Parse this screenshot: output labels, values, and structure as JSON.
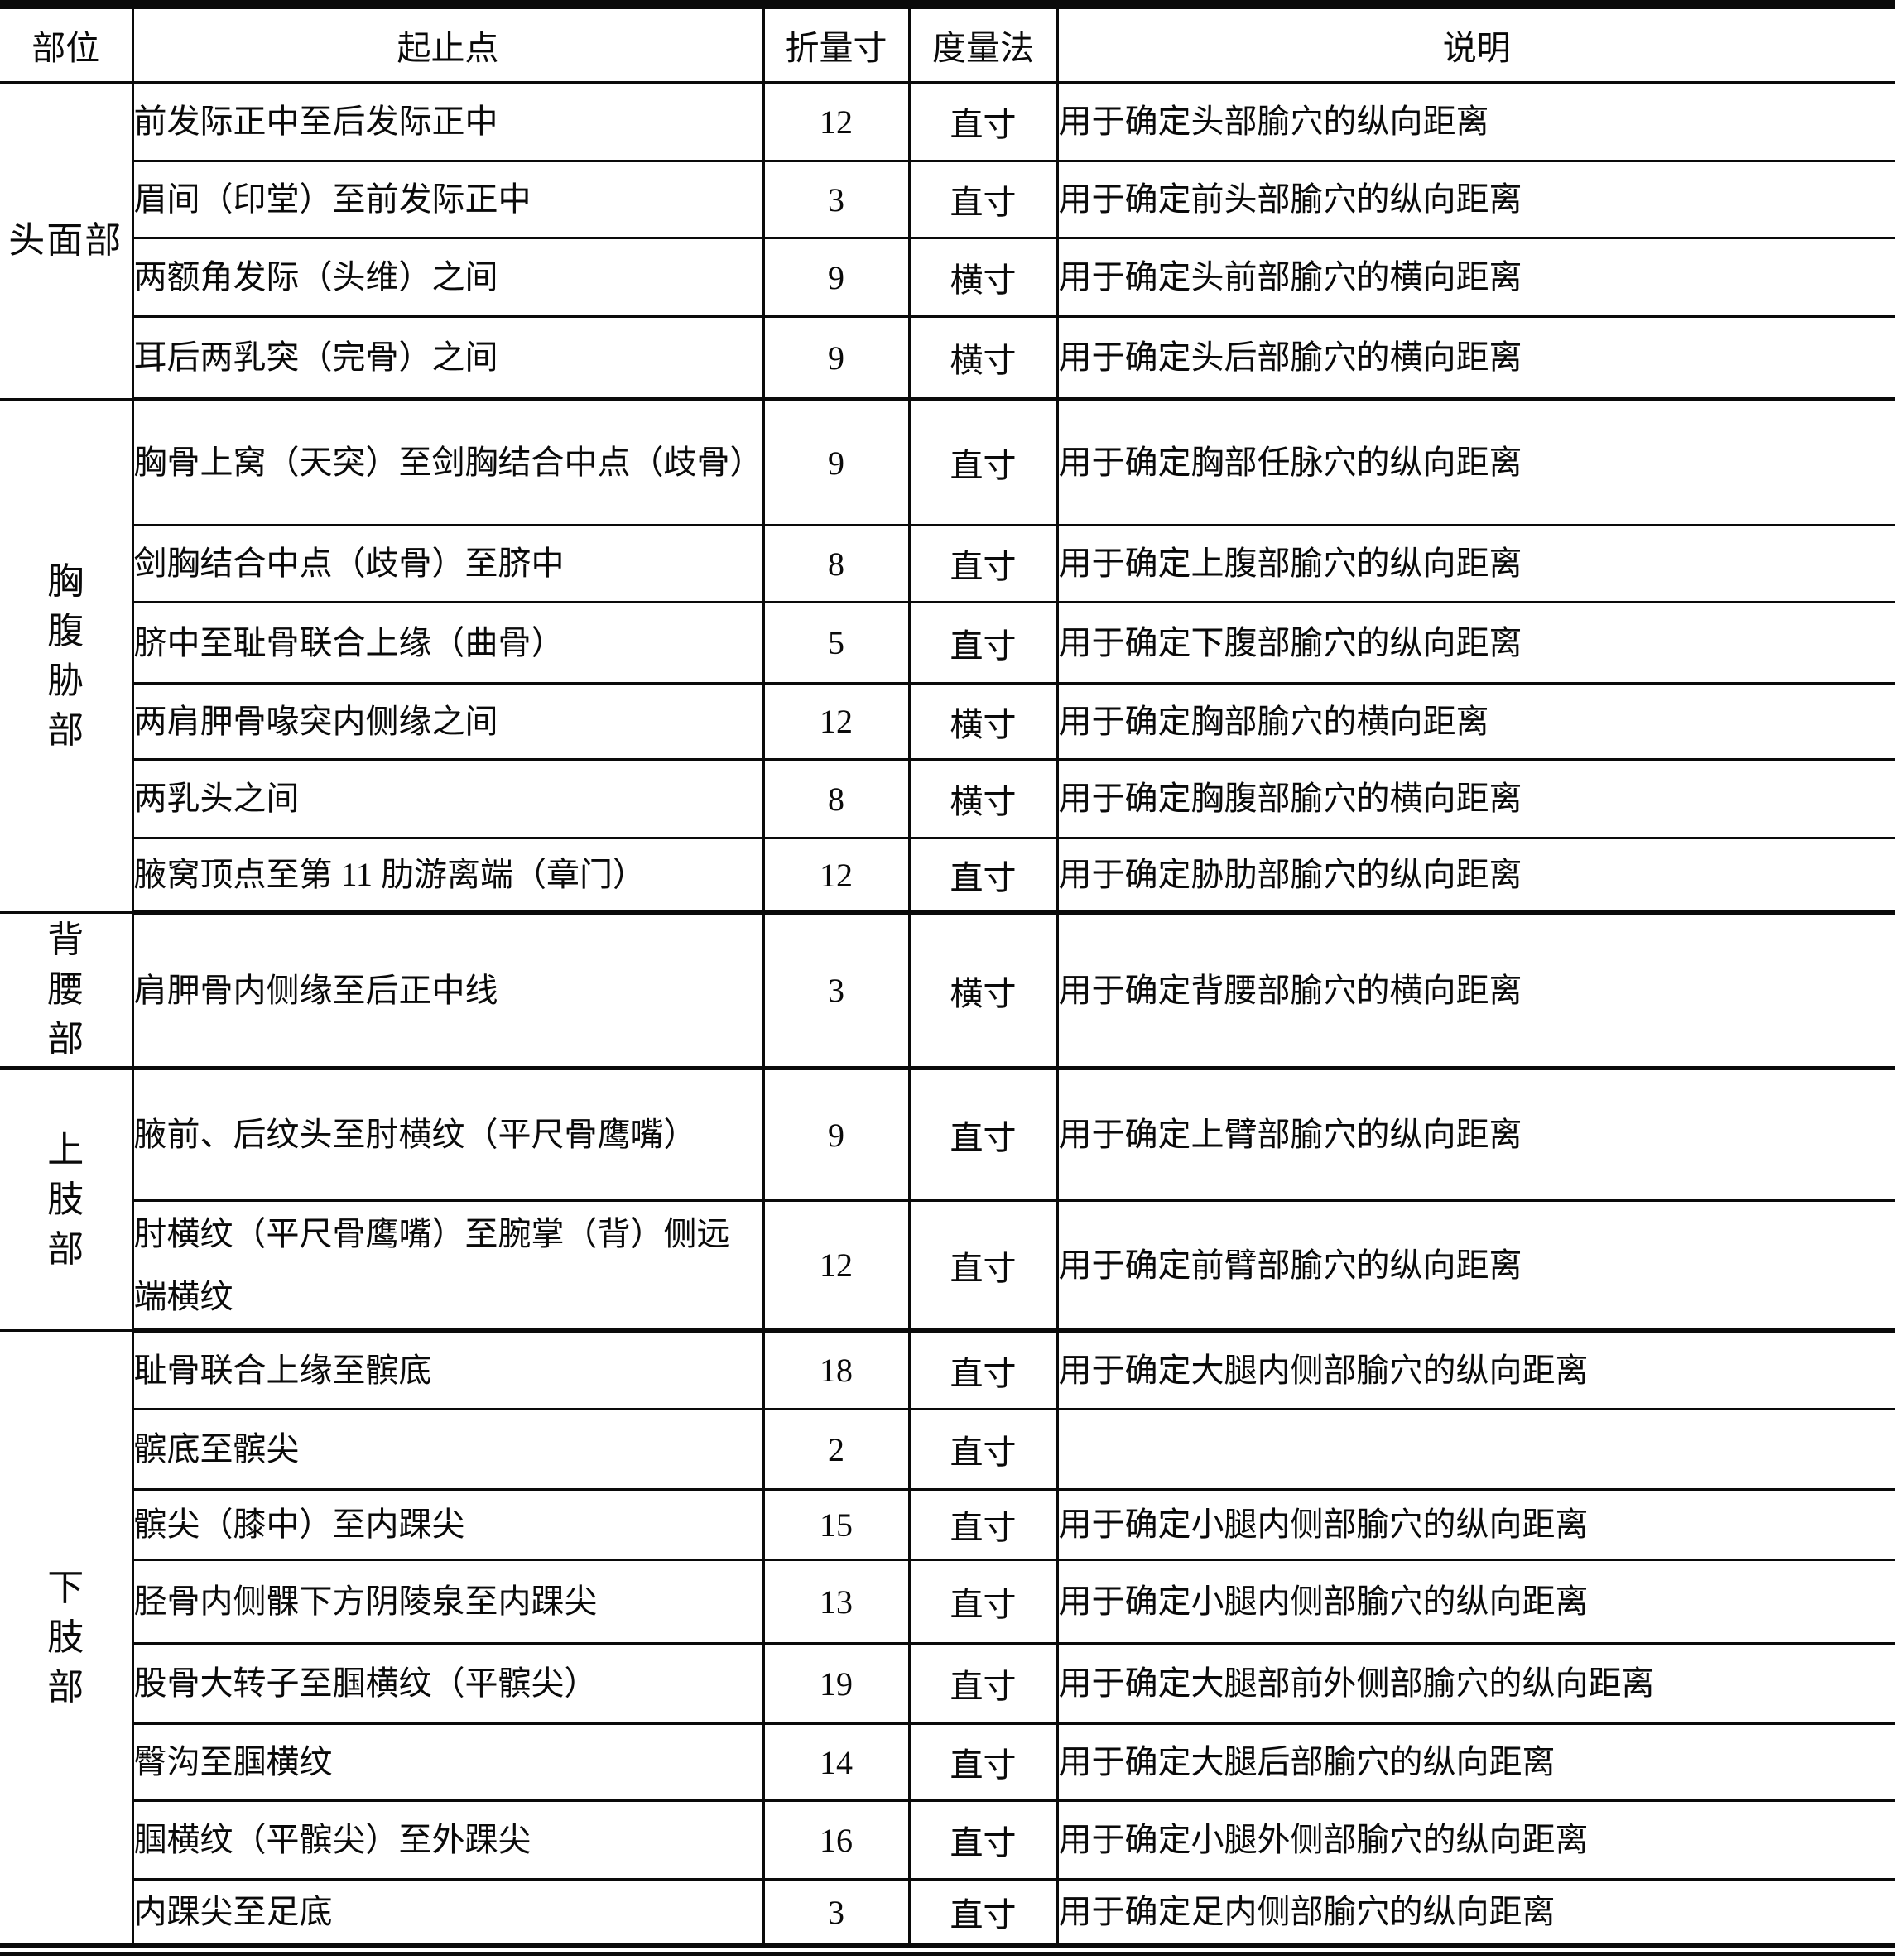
{
  "colors": {
    "ink": "#0a0a0a",
    "paper": "#ffffff"
  },
  "table": {
    "headers": [
      "部位",
      "起止点",
      "折量寸",
      "度量法",
      "说明"
    ],
    "sections": [
      {
        "part": "头面部",
        "orientation": "horizontal",
        "rows": [
          {
            "seg": "前发际正中至后发际正中",
            "cun": "12",
            "method": "直寸",
            "note": "用于确定头部腧穴的纵向距离"
          },
          {
            "seg": "眉间（印堂）至前发际正中",
            "cun": "3",
            "method": "直寸",
            "note": "用于确定前头部腧穴的纵向距离"
          },
          {
            "seg": "两额角发际（头维）之间",
            "cun": "9",
            "method": "横寸",
            "note": "用于确定头前部腧穴的横向距离"
          },
          {
            "seg": "耳后两乳突（完骨）之间",
            "cun": "9",
            "method": "横寸",
            "note": "用于确定头后部腧穴的横向距离"
          }
        ]
      },
      {
        "part": "胸腹胁部",
        "orientation": "vertical",
        "rows": [
          {
            "seg": "胸骨上窝（天突）至剑胸结合中点（歧骨）",
            "cun": "9",
            "method": "直寸",
            "note": "用于确定胸部任脉穴的纵向距离"
          },
          {
            "seg": "剑胸结合中点（歧骨）至脐中",
            "cun": "8",
            "method": "直寸",
            "note": "用于确定上腹部腧穴的纵向距离"
          },
          {
            "seg": "脐中至耻骨联合上缘（曲骨）",
            "cun": "5",
            "method": "直寸",
            "note": "用于确定下腹部腧穴的纵向距离"
          },
          {
            "seg": "两肩胛骨喙突内侧缘之间",
            "cun": "12",
            "method": "横寸",
            "note": "用于确定胸部腧穴的横向距离"
          },
          {
            "seg": "两乳头之间",
            "cun": "8",
            "method": "横寸",
            "note": "用于确定胸腹部腧穴的横向距离"
          },
          {
            "seg": "腋窝顶点至第 11 肋游离端（章门）",
            "cun": "12",
            "method": "直寸",
            "note": "用于确定胁肋部腧穴的纵向距离"
          }
        ]
      },
      {
        "part": "背腰部",
        "orientation": "vertical",
        "rows": [
          {
            "seg": "肩胛骨内侧缘至后正中线",
            "cun": "3",
            "method": "横寸",
            "note": "用于确定背腰部腧穴的横向距离"
          }
        ]
      },
      {
        "part": "上肢部",
        "orientation": "vertical",
        "rows": [
          {
            "seg": "腋前、后纹头至肘横纹（平尺骨鹰嘴）",
            "cun": "9",
            "method": "直寸",
            "note": "用于确定上臂部腧穴的纵向距离"
          },
          {
            "seg": "肘横纹（平尺骨鹰嘴）至腕掌（背）侧远端横纹",
            "cun": "12",
            "method": "直寸",
            "note": "用于确定前臂部腧穴的纵向距离"
          }
        ]
      },
      {
        "part": "下肢部",
        "orientation": "vertical",
        "rows": [
          {
            "seg": "耻骨联合上缘至髌底",
            "cun": "18",
            "method": "直寸",
            "note": "用于确定大腿内侧部腧穴的纵向距离"
          },
          {
            "seg": "髌底至髌尖",
            "cun": "2",
            "method": "直寸",
            "note": ""
          },
          {
            "seg": "髌尖（膝中）至内踝尖",
            "cun": "15",
            "method": "直寸",
            "note": "用于确定小腿内侧部腧穴的纵向距离"
          },
          {
            "seg": "胫骨内侧髁下方阴陵泉至内踝尖",
            "cun": "13",
            "method": "直寸",
            "note": "用于确定小腿内侧部腧穴的纵向距离"
          },
          {
            "seg": "股骨大转子至腘横纹（平髌尖）",
            "cun": "19",
            "method": "直寸",
            "note": "用于确定大腿部前外侧部腧穴的纵向距离"
          },
          {
            "seg": "臀沟至腘横纹",
            "cun": "14",
            "method": "直寸",
            "note": "用于确定大腿后部腧穴的纵向距离"
          },
          {
            "seg": "腘横纹（平髌尖）至外踝尖",
            "cun": "16",
            "method": "直寸",
            "note": "用于确定小腿外侧部腧穴的纵向距离"
          },
          {
            "seg": "内踝尖至足底",
            "cun": "3",
            "method": "直寸",
            "note": "用于确定足内侧部腧穴的纵向距离"
          }
        ]
      }
    ]
  }
}
